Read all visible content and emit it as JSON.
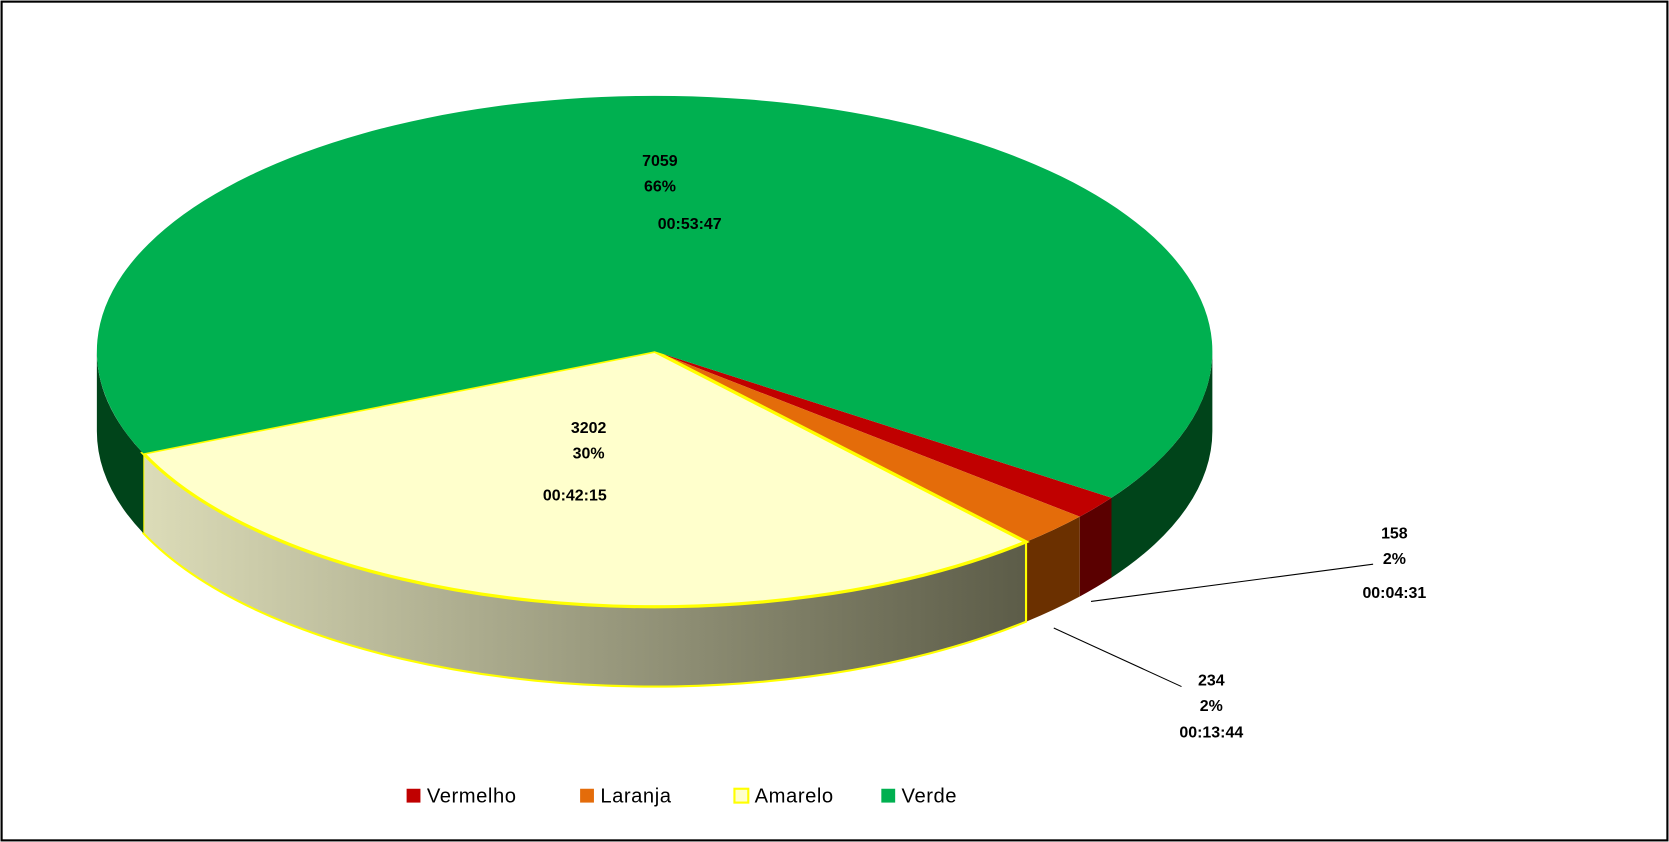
{
  "chart_data": {
    "type": "pie3d",
    "categories": [
      "Vermelho",
      "Laranja",
      "Amarelo",
      "Verde"
    ],
    "values": [
      158,
      234,
      3202,
      7059
    ],
    "percent_values": [
      2,
      2,
      30,
      66
    ],
    "percent_labels": [
      "2%",
      "2%",
      "30%",
      "66%"
    ],
    "durations": [
      "00:04:31",
      "00:13:44",
      "00:42:15",
      "00:53:47"
    ],
    "colors": [
      "#c00000",
      "#e46c0a",
      "#ffffcc",
      "#00b050"
    ],
    "legend": "bottom"
  }
}
